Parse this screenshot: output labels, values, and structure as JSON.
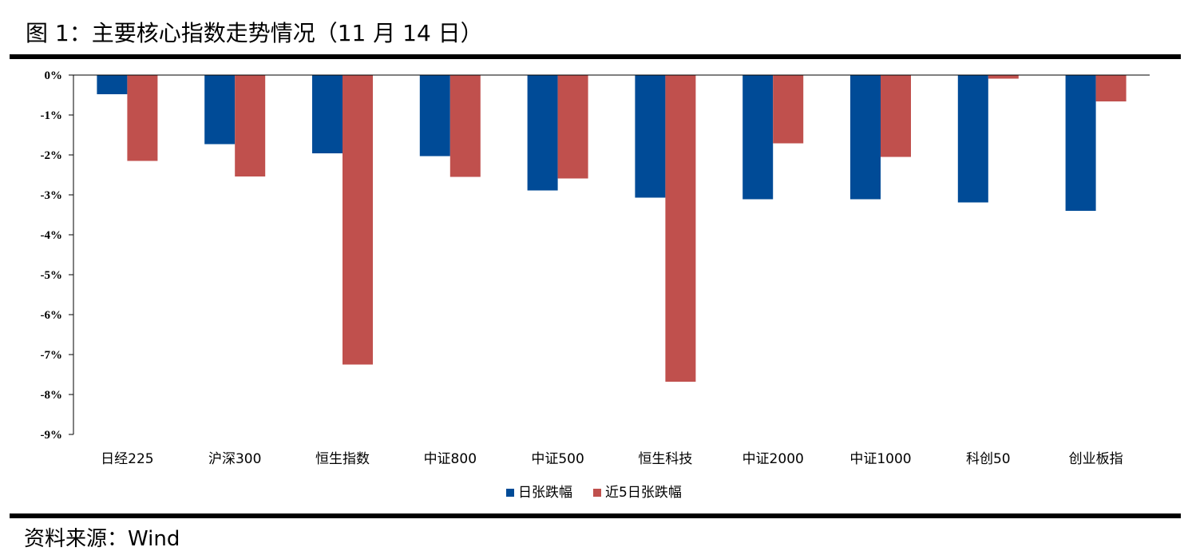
{
  "figure": {
    "title": "图 1：主要核心指数走势情况（11 月 14 日）",
    "source": "资料来源：Wind"
  },
  "chart_data": {
    "type": "bar",
    "categories": [
      "日经225",
      "沪深300",
      "恒生指数",
      "中证800",
      "中证500",
      "恒生科技",
      "中证2000",
      "中证1000",
      "科创50",
      "创业板指"
    ],
    "series": [
      {
        "name": "日张跌幅",
        "color": "#004b97",
        "values": [
          -0.48,
          -1.73,
          -1.96,
          -2.03,
          -2.89,
          -3.07,
          -3.11,
          -3.11,
          -3.19,
          -3.4
        ]
      },
      {
        "name": "近5日张跌幅",
        "color": "#c0504d",
        "values": [
          -2.15,
          -2.54,
          -7.25,
          -2.55,
          -2.59,
          -7.68,
          -1.71,
          -2.05,
          -0.09,
          -0.66
        ]
      }
    ],
    "yticks": [
      "0%",
      "-1%",
      "-2%",
      "-3%",
      "-4%",
      "-5%",
      "-6%",
      "-7%",
      "-8%",
      "-9%"
    ],
    "ylim": [
      -9,
      0
    ],
    "legend_position": "bottom",
    "grid": false
  }
}
